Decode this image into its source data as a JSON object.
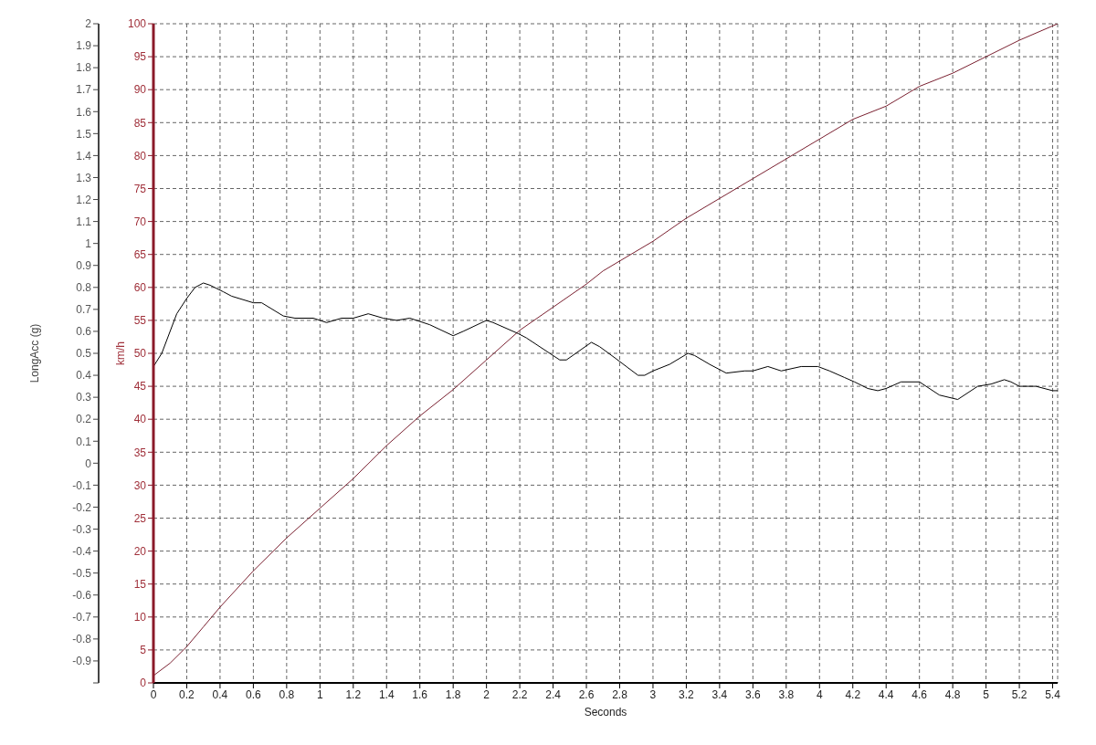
{
  "chart_data": {
    "type": "line",
    "xlabel": "Seconds",
    "ylabel": "km/h",
    "y2label": "LongAcc (g)",
    "xlim": [
      0,
      5.43
    ],
    "xticks": [
      0,
      0.2,
      0.4,
      0.6,
      0.8,
      1,
      1.2,
      1.4,
      1.6,
      1.8,
      2,
      2.2,
      2.4,
      2.6,
      2.8,
      3,
      3.2,
      3.4,
      3.6,
      3.8,
      4,
      4.2,
      4.4,
      4.6,
      4.8,
      5,
      5.2,
      5.4
    ],
    "ylim": [
      0,
      100
    ],
    "yticks": [
      0,
      5,
      10,
      15,
      20,
      25,
      30,
      35,
      40,
      45,
      50,
      55,
      60,
      65,
      70,
      75,
      80,
      85,
      90,
      95,
      100
    ],
    "y2lim": [
      -1,
      2
    ],
    "y2ticks": [
      {
        "value": -1,
        "label": null
      },
      -0.9,
      -0.8,
      -0.7,
      -0.6,
      -0.5,
      -0.4,
      -0.3,
      -0.2,
      -0.1,
      0,
      0.1,
      0.2,
      0.3,
      0.4,
      0.5,
      0.6,
      0.7,
      0.8,
      0.9,
      1,
      1.1,
      1.2,
      1.3,
      1.4,
      1.5,
      1.6,
      1.7,
      1.8,
      1.9,
      2
    ],
    "grid": true,
    "line_style": "solid",
    "marker": "none",
    "series": [
      {
        "color": "#7a2030",
        "x": [
          0,
          0.1,
          0.2,
          0.3,
          0.4,
          0.6,
          0.8,
          1,
          1.2,
          1.4,
          1.6,
          1.8,
          2,
          2.2,
          2.4,
          2.6,
          2.7,
          2.8,
          3,
          3.2,
          3.4,
          3.6,
          3.8,
          4,
          4.2,
          4.4,
          4.6,
          4.8,
          5,
          5.2,
          5.43
        ],
        "values": [
          1.1,
          3,
          5.5,
          8.5,
          11.5,
          17,
          22,
          26.5,
          31,
          36,
          40.5,
          44.5,
          49,
          53.5,
          57,
          60.5,
          62.5,
          64,
          67,
          70.5,
          73.5,
          76.5,
          79.5,
          82.5,
          85.5,
          87.5,
          90.5,
          92.5,
          95,
          97.5,
          100
        ]
      },
      {
        "color": "#000000",
        "axis": "y2",
        "x": [
          0,
          0.05,
          0.14,
          0.2,
          0.25,
          0.3,
          0.34,
          0.42,
          0.47,
          0.6,
          0.65,
          0.78,
          0.85,
          0.96,
          1.04,
          1.13,
          1.2,
          1.29,
          1.38,
          1.46,
          1.54,
          1.66,
          1.8,
          1.86,
          2,
          2.04,
          2.19,
          2.24,
          2.44,
          2.48,
          2.63,
          2.68,
          2.77,
          2.91,
          2.95,
          3,
          3.1,
          3.21,
          3.25,
          3.34,
          3.44,
          3.55,
          3.6,
          3.69,
          3.77,
          3.89,
          3.99,
          4.06,
          4.15,
          4.21,
          4.29,
          4.35,
          4.4,
          4.49,
          4.6,
          4.72,
          4.83,
          4.95,
          5.03,
          5.11,
          5.15,
          5.2,
          5.3,
          5.4,
          5.43
        ],
        "values": [
          0.44,
          0.5,
          0.68,
          0.75,
          0.8,
          0.82,
          0.81,
          0.78,
          0.76,
          0.73,
          0.73,
          0.67,
          0.66,
          0.66,
          0.64,
          0.66,
          0.66,
          0.68,
          0.66,
          0.65,
          0.66,
          0.63,
          0.58,
          0.6,
          0.65,
          0.64,
          0.59,
          0.57,
          0.47,
          0.47,
          0.55,
          0.53,
          0.48,
          0.4,
          0.4,
          0.42,
          0.45,
          0.5,
          0.49,
          0.45,
          0.41,
          0.42,
          0.42,
          0.44,
          0.42,
          0.44,
          0.44,
          0.42,
          0.39,
          0.37,
          0.34,
          0.33,
          0.34,
          0.37,
          0.37,
          0.31,
          0.29,
          0.35,
          0.36,
          0.38,
          0.37,
          0.35,
          0.35,
          0.33,
          0.33
        ]
      }
    ]
  }
}
